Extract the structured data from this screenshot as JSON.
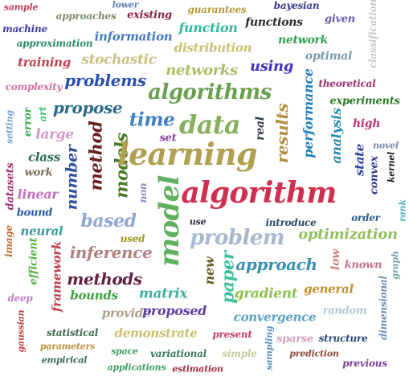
{
  "words": [
    {
      "text": "sample",
      "color": "#c03a5a"
    },
    {
      "text": "approaches",
      "color": "#7a8a6a"
    },
    {
      "text": "lower",
      "color": "#5b7fb0"
    },
    {
      "text": "existing",
      "color": "#8b2340"
    },
    {
      "text": "guarantees",
      "color": "#b79a3a"
    },
    {
      "text": "bayesian",
      "color": "#3a3a8a"
    },
    {
      "text": "machine",
      "color": "#3a3aa0"
    },
    {
      "text": "information",
      "color": "#4a78c0"
    },
    {
      "text": "function",
      "color": "#30b8a0"
    },
    {
      "text": "functions",
      "color": "#2a2a2a"
    },
    {
      "text": "given",
      "color": "#6a5ab0"
    },
    {
      "text": "classification",
      "color": "#c8c8c8"
    },
    {
      "text": "approximation",
      "color": "#2a8a6a"
    },
    {
      "text": "distribution",
      "color": "#c8c070"
    },
    {
      "text": "network",
      "color": "#30a050"
    },
    {
      "text": "training",
      "color": "#c04050"
    },
    {
      "text": "stochastic",
      "color": "#c8c080"
    },
    {
      "text": "optimal",
      "color": "#7a9ab0"
    },
    {
      "text": "networks",
      "color": "#a8c060"
    },
    {
      "text": "using",
      "color": "#4030c0"
    },
    {
      "text": "complexity",
      "color": "#d070a0"
    },
    {
      "text": "problems",
      "color": "#2a50b0"
    },
    {
      "text": "theoretical",
      "color": "#a03070"
    },
    {
      "text": "algorithms",
      "color": "#6aa050"
    },
    {
      "text": "performance",
      "color": "#2080c0"
    },
    {
      "text": "experiments",
      "color": "#2a7a2a"
    },
    {
      "text": "setting",
      "color": "#7aa0d0"
    },
    {
      "text": "error",
      "color": "#3ab050"
    },
    {
      "text": "art",
      "color": "#40c070"
    },
    {
      "text": "propose",
      "color": "#2a6a8a"
    },
    {
      "text": "time",
      "color": "#4080c0"
    },
    {
      "text": "data",
      "color": "#88b060"
    },
    {
      "text": "real",
      "color": "#2a3a4a"
    },
    {
      "text": "results",
      "color": "#b09040"
    },
    {
      "text": "analysis",
      "color": "#2a8ab0"
    },
    {
      "text": "high",
      "color": "#c03070"
    },
    {
      "text": "large",
      "color": "#d098c8"
    },
    {
      "text": "method",
      "color": "#6a2020"
    },
    {
      "text": "models",
      "color": "#4a7a2a"
    },
    {
      "text": "set",
      "color": "#8a40a0"
    },
    {
      "text": "learning",
      "color": "#b0a050"
    },
    {
      "text": "state",
      "color": "#2a40a0"
    },
    {
      "text": "novel",
      "color": "#7a8ab0"
    },
    {
      "text": "class",
      "color": "#2a6a5a"
    },
    {
      "text": "number",
      "color": "#3050a0"
    },
    {
      "text": "convex",
      "color": "#2a3a90"
    },
    {
      "text": "kernel",
      "color": "#1a1a1a"
    },
    {
      "text": "datasets",
      "color": "#a03070"
    },
    {
      "text": "work",
      "color": "#7a6a5a"
    },
    {
      "text": "model",
      "color": "#60b060"
    },
    {
      "text": "non",
      "color": "#8a8ac0"
    },
    {
      "text": "algorithm",
      "color": "#d03050"
    },
    {
      "text": "linear",
      "color": "#c070c0"
    },
    {
      "text": "bound",
      "color": "#2a5aa0"
    },
    {
      "text": "rank",
      "color": "#50b0c0"
    },
    {
      "text": "based",
      "color": "#90a8d0"
    },
    {
      "text": "use",
      "color": "#2a2a3a"
    },
    {
      "text": "introduce",
      "color": "#2a4a6a"
    },
    {
      "text": "order",
      "color": "#2a5a8a"
    },
    {
      "text": "image",
      "color": "#c07030"
    },
    {
      "text": "neural",
      "color": "#3a9aa0"
    },
    {
      "text": "used",
      "color": "#9a9a20"
    },
    {
      "text": "problem",
      "color": "#a8b8d0"
    },
    {
      "text": "optimization",
      "color": "#90c060"
    },
    {
      "text": "efficient",
      "color": "#50b040"
    },
    {
      "text": "framework",
      "color": "#c04050"
    },
    {
      "text": "inference",
      "color": "#b08080"
    },
    {
      "text": "new",
      "color": "#6a5a2a"
    },
    {
      "text": "paper",
      "color": "#40c0a0"
    },
    {
      "text": "approach",
      "color": "#3a90b0"
    },
    {
      "text": "low",
      "color": "#d08080"
    },
    {
      "text": "known",
      "color": "#c07090"
    },
    {
      "text": "graph",
      "color": "#70a0a0"
    },
    {
      "text": "methods",
      "color": "#602040"
    },
    {
      "text": "matrix",
      "color": "#40b0a0"
    },
    {
      "text": "gradient",
      "color": "#90c050"
    },
    {
      "text": "general",
      "color": "#c09030"
    },
    {
      "text": "deep",
      "color": "#c080c0"
    },
    {
      "text": "bounds",
      "color": "#40a040"
    },
    {
      "text": "provide",
      "color": "#b0a090"
    },
    {
      "text": "proposed",
      "color": "#6040a0"
    },
    {
      "text": "convergence",
      "color": "#5aa0c0"
    },
    {
      "text": "random",
      "color": "#b0c8d0"
    },
    {
      "text": "dimensional",
      "color": "#7090b0"
    },
    {
      "text": "gaussian",
      "color": "#c04040"
    },
    {
      "text": "statistical",
      "color": "#3a6a4a"
    },
    {
      "text": "demonstrate",
      "color": "#c8c070"
    },
    {
      "text": "present",
      "color": "#c04070"
    },
    {
      "text": "sparse",
      "color": "#d0a0c0"
    },
    {
      "text": "structure",
      "color": "#2a4a7a"
    },
    {
      "text": "parameters",
      "color": "#c09040"
    },
    {
      "text": "space",
      "color": "#40a060"
    },
    {
      "text": "variational",
      "color": "#3a7a5a"
    },
    {
      "text": "simple",
      "color": "#c8c8a0"
    },
    {
      "text": "sampling",
      "color": "#5a90c0"
    },
    {
      "text": "prediction",
      "color": "#8a4a3a"
    },
    {
      "text": "empirical",
      "color": "#3a6a5a"
    },
    {
      "text": "applications",
      "color": "#3aa060"
    },
    {
      "text": "estimation",
      "color": "#a03040"
    },
    {
      "text": "previous",
      "color": "#8040a0"
    }
  ]
}
